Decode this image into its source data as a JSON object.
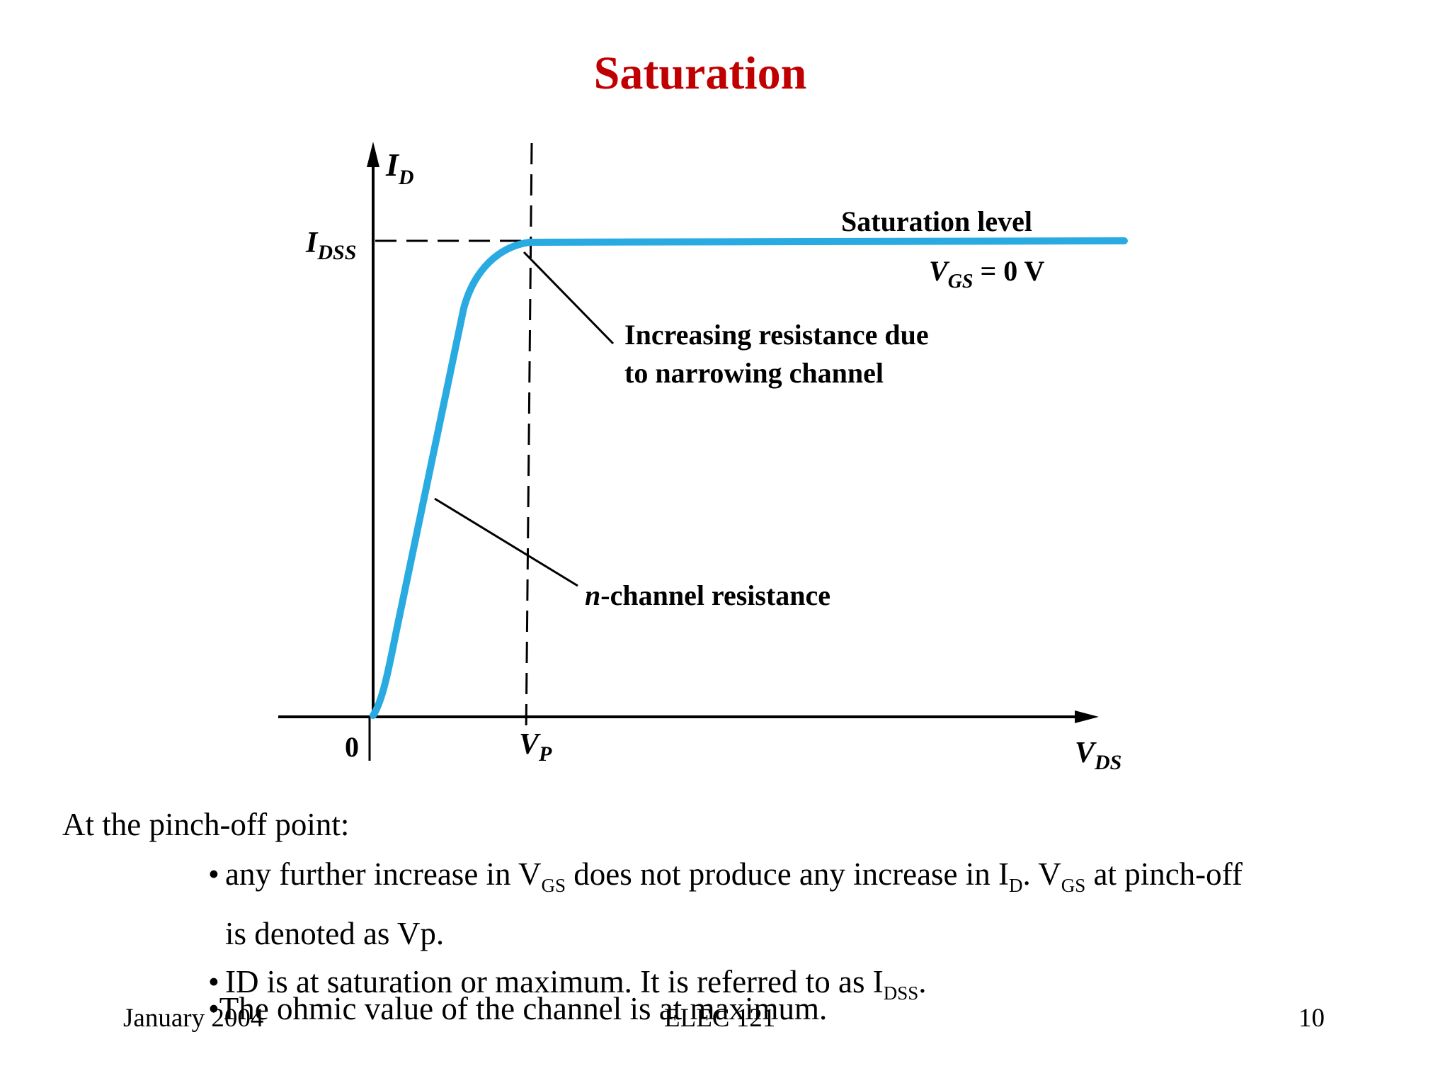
{
  "slide": {
    "title": "Saturation",
    "intro": "At the pinch-off point:",
    "bullets": [
      {
        "parts": [
          {
            "text": "any further increase in V"
          },
          {
            "text": "GS",
            "sub": true
          },
          {
            "text": " does not produce any increase in I"
          },
          {
            "text": "D",
            "sub": true
          },
          {
            "text": ". V"
          },
          {
            "text": "GS",
            "sub": true
          },
          {
            "text": " at pinch-off is denoted as Vp."
          }
        ]
      },
      {
        "parts": [
          {
            "text": "ID is at saturation or maximum. It is referred to as I"
          },
          {
            "text": "DSS",
            "sub": true
          },
          {
            "text": "."
          }
        ]
      }
    ],
    "bullet3": "The ohmic value of the channel is at maximum.",
    "bullet_char": "•"
  },
  "figure": {
    "y_axis_label": "I",
    "y_axis_sub": "D",
    "idss_label": "I",
    "idss_sub": "DSS",
    "origin_label": "0",
    "vp_label": "V",
    "vp_sub": "P",
    "x_axis_label": "V",
    "x_axis_sub": "DS",
    "saturation_level": "Saturation level",
    "vgs_label": "V",
    "vgs_sub": "GS",
    "vgs_value": " = 0 V",
    "annotation_1_line1": "Increasing resistance due",
    "annotation_1_line2": "to narrowing channel",
    "annotation_2_italic": "n",
    "annotation_2_rest": "-channel resistance",
    "curve_color": "#29abe2"
  },
  "footer": {
    "date": "January 2004",
    "course": "ELEC 121",
    "page": "10"
  }
}
